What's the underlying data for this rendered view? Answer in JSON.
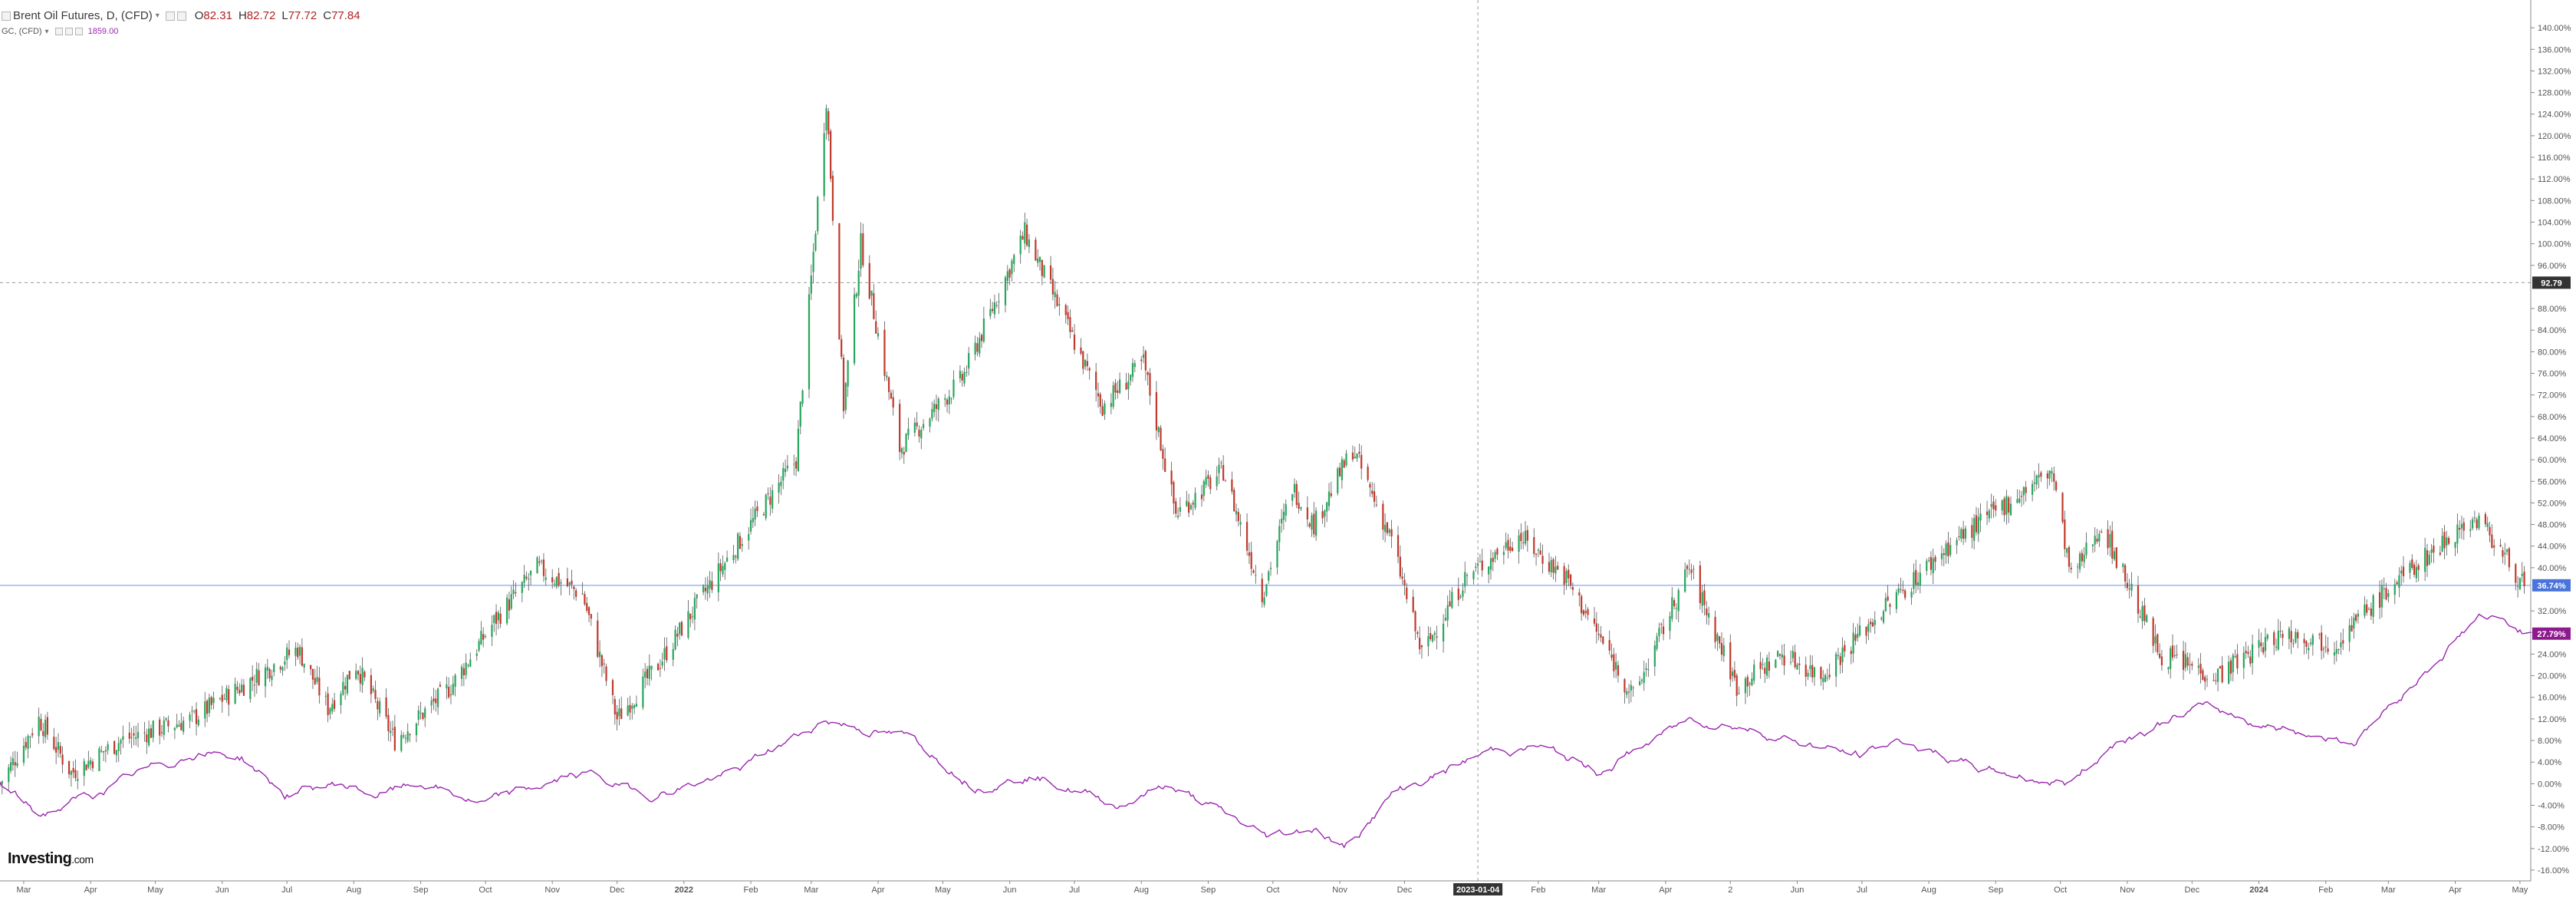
{
  "header": {
    "symbol": "Brent Oil Futures, D, (CFD)",
    "open_label": "O",
    "open_value": "82.31",
    "high_label": "H",
    "high_value": "82.72",
    "low_label": "L",
    "low_value": "77.72",
    "close_label": "C",
    "close_value": "77.84",
    "compare_symbol": "GC, (CFD)",
    "compare_value": "1859.00",
    "menu_icon": "chevron-down-icon"
  },
  "branding": {
    "logo_text": "Investing",
    "logo_suffix": ".com"
  },
  "colors": {
    "up": "#26a65b",
    "down": "#c0392b",
    "compare_line": "#9b27af",
    "last_price_bg": "#4a74d9",
    "compare_label_bg": "#8e1a8e",
    "crosshair_label_bg": "#333333",
    "axis_text": "#555555",
    "hline": "#8fb2ef"
  },
  "chart_data": {
    "type": "line",
    "title": "",
    "xlabel": "",
    "ylabel": "",
    "y_unit": "%",
    "ylim": [
      -18,
      144
    ],
    "x_range": [
      "2021-02-18",
      "2024-05-06"
    ],
    "grid": false,
    "x_tick_labels": [
      {
        "date": "2021-03-01",
        "label": "Mar"
      },
      {
        "date": "2021-04-01",
        "label": "Apr"
      },
      {
        "date": "2021-05-01",
        "label": "May"
      },
      {
        "date": "2021-06-01",
        "label": "Jun"
      },
      {
        "date": "2021-07-01",
        "label": "Jul"
      },
      {
        "date": "2021-08-01",
        "label": "Aug"
      },
      {
        "date": "2021-09-01",
        "label": "Sep"
      },
      {
        "date": "2021-10-01",
        "label": "Oct"
      },
      {
        "date": "2021-11-01",
        "label": "Nov"
      },
      {
        "date": "2021-12-01",
        "label": "Dec"
      },
      {
        "date": "2022-01-01",
        "label": "2022"
      },
      {
        "date": "2022-02-01",
        "label": "Feb"
      },
      {
        "date": "2022-03-01",
        "label": "Mar"
      },
      {
        "date": "2022-04-01",
        "label": "Apr"
      },
      {
        "date": "2022-05-01",
        "label": "May"
      },
      {
        "date": "2022-06-01",
        "label": "Jun"
      },
      {
        "date": "2022-07-01",
        "label": "Jul"
      },
      {
        "date": "2022-08-01",
        "label": "Aug"
      },
      {
        "date": "2022-09-01",
        "label": "Sep"
      },
      {
        "date": "2022-10-01",
        "label": "Oct"
      },
      {
        "date": "2022-11-01",
        "label": "Nov"
      },
      {
        "date": "2022-12-01",
        "label": "Dec"
      },
      {
        "date": "2023-02-01",
        "label": "Feb"
      },
      {
        "date": "2023-03-01",
        "label": "Mar"
      },
      {
        "date": "2023-04-01",
        "label": "Apr"
      },
      {
        "date": "2023-05-01",
        "label": "2"
      },
      {
        "date": "2023-06-01",
        "label": "Jun"
      },
      {
        "date": "2023-07-01",
        "label": "Jul"
      },
      {
        "date": "2023-08-01",
        "label": "Aug"
      },
      {
        "date": "2023-09-01",
        "label": "Sep"
      },
      {
        "date": "2023-10-01",
        "label": "Oct"
      },
      {
        "date": "2023-11-01",
        "label": "Nov"
      },
      {
        "date": "2023-12-01",
        "label": "Dec"
      },
      {
        "date": "2024-01-01",
        "label": "2024"
      },
      {
        "date": "2024-02-01",
        "label": "Feb"
      },
      {
        "date": "2024-03-01",
        "label": "Mar"
      },
      {
        "date": "2024-04-01",
        "label": "Apr"
      },
      {
        "date": "2024-05-01",
        "label": "May"
      }
    ],
    "y_tick_labels": [
      "140.00%",
      "136.00%",
      "132.00%",
      "128.00%",
      "124.00%",
      "120.00%",
      "116.00%",
      "112.00%",
      "108.00%",
      "104.00%",
      "100.00%",
      "96.00%",
      "88.00%",
      "84.00%",
      "80.00%",
      "76.00%",
      "72.00%",
      "68.00%",
      "64.00%",
      "60.00%",
      "56.00%",
      "52.00%",
      "48.00%",
      "44.00%",
      "40.00%",
      "32.00%",
      "28.00%",
      "24.00%",
      "20.00%",
      "16.00%",
      "12.00%",
      "8.00%",
      "4.00%",
      "0.00%",
      "-4.00%",
      "-8.00%",
      "-12.00%",
      "-16.00%"
    ],
    "y_tick_values": [
      140,
      136,
      132,
      128,
      124,
      120,
      116,
      112,
      108,
      104,
      100,
      96,
      88,
      84,
      80,
      76,
      72,
      68,
      64,
      60,
      56,
      52,
      48,
      44,
      40,
      32,
      28,
      24,
      20,
      16,
      12,
      8,
      4,
      0,
      -4,
      -8,
      -12,
      -16
    ],
    "crosshair": {
      "x_date": "2023-01-04",
      "x_label": "2023-01-04",
      "y_value": 92.79,
      "y_label": "92.79"
    },
    "last_value_labels": [
      {
        "series": "Brent Oil Futures",
        "value": 36.74,
        "label": "36.74%"
      },
      {
        "series": "GC",
        "value": 27.79,
        "label": "27.79%"
      }
    ],
    "series": [
      {
        "name": "Brent Oil Futures",
        "kind": "candlestick",
        "approx_close_pct": [
          [
            "2021-02-18",
            0
          ],
          [
            "2021-03-08",
            12
          ],
          [
            "2021-03-23",
            2
          ],
          [
            "2021-04-15",
            8
          ],
          [
            "2021-05-18",
            12
          ],
          [
            "2021-06-10",
            18
          ],
          [
            "2021-07-06",
            25
          ],
          [
            "2021-07-20",
            14
          ],
          [
            "2021-08-02",
            22
          ],
          [
            "2021-08-20",
            8
          ],
          [
            "2021-09-15",
            18
          ],
          [
            "2021-10-05",
            30
          ],
          [
            "2021-10-25",
            40
          ],
          [
            "2021-11-15",
            35
          ],
          [
            "2021-12-01",
            12
          ],
          [
            "2021-12-20",
            22
          ],
          [
            "2022-01-10",
            35
          ],
          [
            "2022-02-01",
            48
          ],
          [
            "2022-02-22",
            60
          ],
          [
            "2022-03-08",
            127
          ],
          [
            "2022-03-16",
            70
          ],
          [
            "2022-03-24",
            100
          ],
          [
            "2022-04-11",
            62
          ],
          [
            "2022-05-10",
            75
          ],
          [
            "2022-06-08",
            102
          ],
          [
            "2022-06-24",
            88
          ],
          [
            "2022-07-14",
            70
          ],
          [
            "2022-08-02",
            78
          ],
          [
            "2022-08-17",
            50
          ],
          [
            "2022-09-08",
            58
          ],
          [
            "2022-09-26",
            35
          ],
          [
            "2022-10-10",
            55
          ],
          [
            "2022-10-20",
            48
          ],
          [
            "2022-11-07",
            62
          ],
          [
            "2022-11-25",
            45
          ],
          [
            "2022-12-09",
            24
          ],
          [
            "2022-12-29",
            38
          ],
          [
            "2023-01-23",
            46
          ],
          [
            "2023-02-14",
            38
          ],
          [
            "2023-03-17",
            16
          ],
          [
            "2023-04-12",
            40
          ],
          [
            "2023-05-04",
            18
          ],
          [
            "2023-05-25",
            24
          ],
          [
            "2023-06-12",
            20
          ],
          [
            "2023-07-10",
            32
          ],
          [
            "2023-08-10",
            44
          ],
          [
            "2023-09-27",
            58
          ],
          [
            "2023-10-06",
            38
          ],
          [
            "2023-10-20",
            48
          ],
          [
            "2023-11-16",
            24
          ],
          [
            "2023-12-12",
            20
          ],
          [
            "2024-01-12",
            28
          ],
          [
            "2024-02-05",
            26
          ],
          [
            "2024-03-01",
            36
          ],
          [
            "2024-04-05",
            48
          ],
          [
            "2024-04-12",
            49
          ],
          [
            "2024-05-03",
            36.74
          ]
        ]
      },
      {
        "name": "GC",
        "kind": "line",
        "approx_pct": [
          [
            "2021-02-18",
            0
          ],
          [
            "2021-03-08",
            -6
          ],
          [
            "2021-04-15",
            0
          ],
          [
            "2021-05-20",
            6
          ],
          [
            "2021-06-10",
            5
          ],
          [
            "2021-06-30",
            -2
          ],
          [
            "2021-07-25",
            0
          ],
          [
            "2021-08-10",
            -2
          ],
          [
            "2021-09-03",
            0
          ],
          [
            "2021-09-30",
            -4
          ],
          [
            "2021-11-15",
            2
          ],
          [
            "2021-12-15",
            -2
          ],
          [
            "2022-01-25",
            2
          ],
          [
            "2022-03-08",
            12
          ],
          [
            "2022-04-18",
            8
          ],
          [
            "2022-05-16",
            0
          ],
          [
            "2022-06-10",
            2
          ],
          [
            "2022-07-21",
            -4
          ],
          [
            "2022-08-12",
            0
          ],
          [
            "2022-09-28",
            -10
          ],
          [
            "2022-10-20",
            -8
          ],
          [
            "2022-11-03",
            -12
          ],
          [
            "2022-11-25",
            -2
          ],
          [
            "2023-01-10",
            6
          ],
          [
            "2023-02-01",
            7
          ],
          [
            "2023-02-28",
            2
          ],
          [
            "2023-04-13",
            12
          ],
          [
            "2023-05-04",
            11
          ],
          [
            "2023-06-29",
            5
          ],
          [
            "2023-07-20",
            8
          ],
          [
            "2023-08-21",
            3
          ],
          [
            "2023-10-05",
            0
          ],
          [
            "2023-10-27",
            8
          ],
          [
            "2023-12-04",
            14
          ],
          [
            "2024-01-15",
            10
          ],
          [
            "2024-02-14",
            8
          ],
          [
            "2024-03-21",
            22
          ],
          [
            "2024-04-12",
            31
          ],
          [
            "2024-05-06",
            27.79
          ]
        ]
      }
    ]
  }
}
